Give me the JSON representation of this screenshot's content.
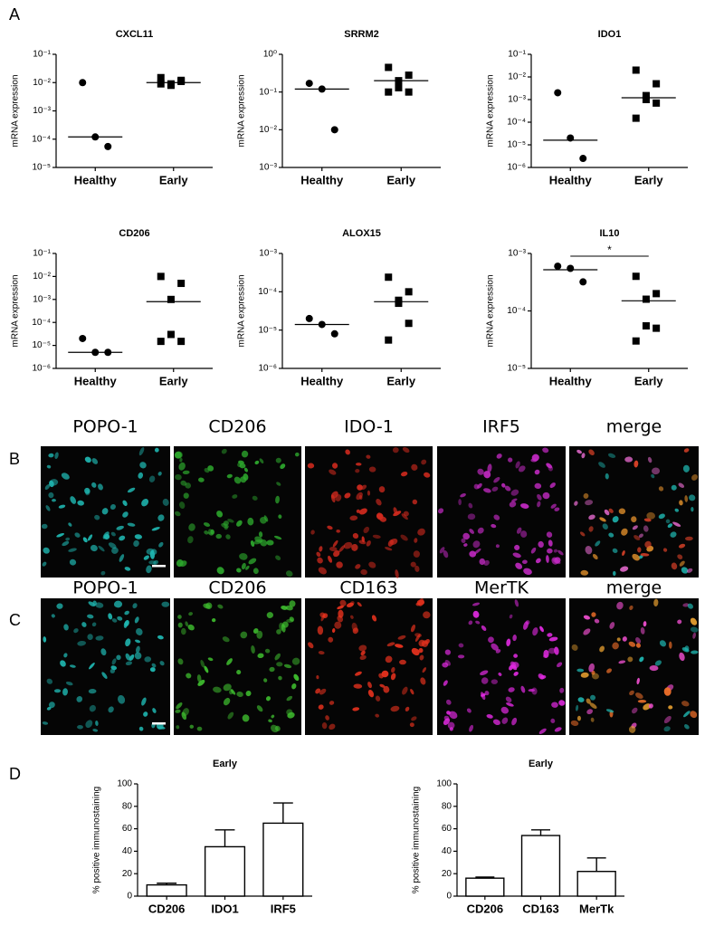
{
  "figure_labels": [
    "A",
    "B",
    "C",
    "D"
  ],
  "image_rows": [
    {
      "channels": [
        "POPO-1",
        "CD206",
        "IDO-1",
        "IRF5",
        "merge"
      ]
    },
    {
      "channels": [
        "POPO-1",
        "CD206",
        "CD163",
        "MerTK",
        "merge"
      ]
    }
  ],
  "chart_data": [
    {
      "type": "dotplot",
      "title": "CXCL11",
      "y_label": "mRNA expression",
      "log_scale": true,
      "color": "#000000",
      "categories": [
        "Healthy",
        "Early"
      ],
      "markers": [
        "circle",
        "square"
      ],
      "values": [
        [
          0.01,
          0.00012,
          5.5e-05
        ],
        [
          0.015,
          0.012,
          0.009,
          0.008,
          0.011,
          0.009
        ]
      ],
      "medians": [
        0.00012,
        0.01
      ],
      "ylim": [
        1e-05,
        0.1
      ],
      "yticks": [
        {
          "value": 0.1,
          "label": "10⁻¹"
        },
        {
          "value": 0.01,
          "label": "10⁻²"
        },
        {
          "value": 0.001,
          "label": "10⁻³"
        },
        {
          "value": 0.0001,
          "label": "10⁻⁴"
        },
        {
          "value": 1e-05,
          "label": "10⁻⁵"
        }
      ]
    },
    {
      "type": "dotplot",
      "title": "SRRM2",
      "y_label": "mRNA expression",
      "log_scale": true,
      "color": "#000000",
      "categories": [
        "Healthy",
        "Early"
      ],
      "markers": [
        "circle",
        "square"
      ],
      "values": [
        [
          0.17,
          0.12,
          0.01
        ],
        [
          0.45,
          0.28,
          0.2,
          0.13,
          0.1,
          0.1
        ]
      ],
      "medians": [
        0.12,
        0.2
      ],
      "ylim": [
        0.001,
        1
      ],
      "yticks": [
        {
          "value": 1,
          "label": "10⁰"
        },
        {
          "value": 0.1,
          "label": "10⁻¹"
        },
        {
          "value": 0.01,
          "label": "10⁻²"
        },
        {
          "value": 0.001,
          "label": "10⁻³"
        }
      ]
    },
    {
      "type": "dotplot",
      "title": "IDO1",
      "y_label": "mRNA expression",
      "log_scale": true,
      "color": "#000000",
      "categories": [
        "Healthy",
        "Early"
      ],
      "markers": [
        "circle",
        "square"
      ],
      "values": [
        [
          0.002,
          2e-05,
          2.5e-06
        ],
        [
          0.02,
          0.005,
          0.0015,
          0.001,
          0.0007,
          0.00015
        ]
      ],
      "medians": [
        1.6e-05,
        0.0012
      ],
      "ylim": [
        1e-06,
        0.1
      ],
      "yticks": [
        {
          "value": 0.1,
          "label": "10⁻¹"
        },
        {
          "value": 0.01,
          "label": "10⁻²"
        },
        {
          "value": 0.001,
          "label": "10⁻³"
        },
        {
          "value": 0.0001,
          "label": "10⁻⁴"
        },
        {
          "value": 1e-05,
          "label": "10⁻⁵"
        },
        {
          "value": 1e-06,
          "label": "10⁻⁶"
        }
      ]
    },
    {
      "type": "dotplot",
      "title": "CD206",
      "y_label": "mRNA expression",
      "log_scale": true,
      "color": "#000000",
      "categories": [
        "Healthy",
        "Early"
      ],
      "markers": [
        "circle",
        "square"
      ],
      "values": [
        [
          2e-05,
          5e-06,
          5e-06
        ],
        [
          0.01,
          0.005,
          0.001,
          3e-05,
          1.5e-05,
          1.5e-05
        ]
      ],
      "medians": [
        5e-06,
        0.0008
      ],
      "ylim": [
        1e-06,
        0.1
      ],
      "yticks": [
        {
          "value": 0.1,
          "label": "10⁻¹"
        },
        {
          "value": 0.01,
          "label": "10⁻²"
        },
        {
          "value": 0.001,
          "label": "10⁻³"
        },
        {
          "value": 0.0001,
          "label": "10⁻⁴"
        },
        {
          "value": 1e-05,
          "label": "10⁻⁵"
        },
        {
          "value": 1e-06,
          "label": "10⁻⁶"
        }
      ]
    },
    {
      "type": "dotplot",
      "title": "ALOX15",
      "y_label": "mRNA expression",
      "log_scale": true,
      "color": "#000000",
      "categories": [
        "Healthy",
        "Early"
      ],
      "markers": [
        "circle",
        "square"
      ],
      "values": [
        [
          2e-05,
          1.4e-05,
          8e-06
        ],
        [
          0.00024,
          0.0001,
          6e-05,
          5e-05,
          1.5e-05,
          5.5e-06
        ]
      ],
      "medians": [
        1.4e-05,
        5.5e-05
      ],
      "ylim": [
        1e-06,
        0.001
      ],
      "yticks": [
        {
          "value": 0.001,
          "label": "10⁻³"
        },
        {
          "value": 0.0001,
          "label": "10⁻⁴"
        },
        {
          "value": 1e-05,
          "label": "10⁻⁵"
        },
        {
          "value": 1e-06,
          "label": "10⁻⁶"
        }
      ]
    },
    {
      "type": "dotplot",
      "title": "IL10",
      "y_label": "mRNA expression",
      "log_scale": true,
      "color": "#000000",
      "categories": [
        "Healthy",
        "Early"
      ],
      "markers": [
        "circle",
        "square"
      ],
      "values": [
        [
          0.0006,
          0.00055,
          0.00032
        ],
        [
          0.0004,
          0.0002,
          0.00016,
          5.5e-05,
          5e-05,
          3e-05
        ]
      ],
      "medians": [
        0.00052,
        0.00015
      ],
      "annotation": "*",
      "ylim": [
        1e-05,
        0.001
      ],
      "yticks": [
        {
          "value": 0.001,
          "label": "10⁻³"
        },
        {
          "value": 0.0001,
          "label": "10⁻⁴"
        },
        {
          "value": 1e-05,
          "label": "10⁻⁵"
        }
      ]
    },
    {
      "type": "bar",
      "title": "Early",
      "y_label": "% positive immunostaining",
      "color": "#ffffff",
      "categories": [
        "CD206",
        "IDO1",
        "IRF5"
      ],
      "values": [
        10,
        44,
        65
      ],
      "errors": [
        1.5,
        15,
        18
      ],
      "ylim": [
        0,
        100
      ],
      "yticks": [
        0,
        20,
        40,
        60,
        80,
        100
      ]
    },
    {
      "type": "bar",
      "title": "Early",
      "y_label": "% positive immunostaining",
      "color": "#ffffff",
      "categories": [
        "CD206",
        "CD163",
        "MerTk"
      ],
      "values": [
        16,
        54,
        22
      ],
      "errors": [
        1,
        5,
        12
      ],
      "ylim": [
        0,
        100
      ],
      "yticks": [
        0,
        20,
        40,
        60,
        80,
        100
      ]
    }
  ]
}
